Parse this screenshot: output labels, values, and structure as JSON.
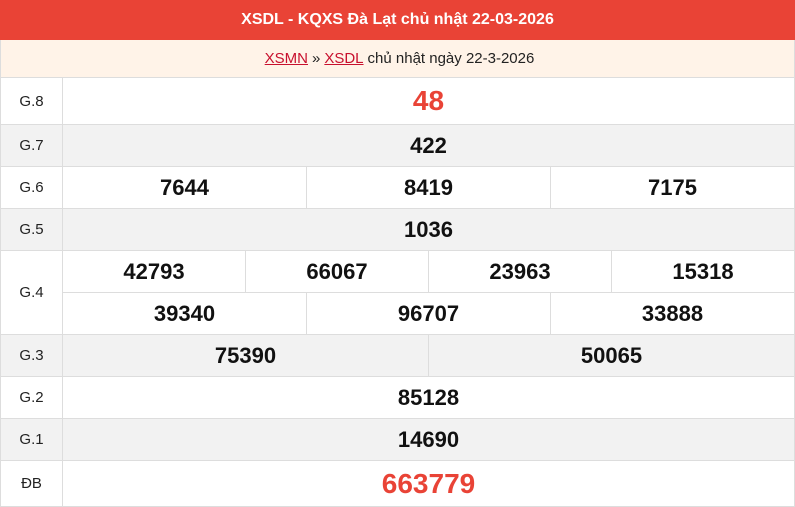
{
  "header": {
    "title": "XSDL - KQXS Đà Lạt chủ nhật 22-03-2026"
  },
  "breadcrumb": {
    "link1": "XSMN",
    "sep": "»",
    "link2": "XSDL",
    "text": "chủ nhật ngày 22-3-2026"
  },
  "prizes": {
    "g8": {
      "label": "G.8",
      "values": [
        "48"
      ]
    },
    "g7": {
      "label": "G.7",
      "values": [
        "422"
      ]
    },
    "g6": {
      "label": "G.6",
      "values": [
        "7644",
        "8419",
        "7175"
      ]
    },
    "g5": {
      "label": "G.5",
      "values": [
        "1036"
      ]
    },
    "g4": {
      "label": "G.4",
      "values": [
        "42793",
        "66067",
        "23963",
        "15318",
        "39340",
        "96707",
        "33888"
      ]
    },
    "g3": {
      "label": "G.3",
      "values": [
        "75390",
        "50065"
      ]
    },
    "g2": {
      "label": "G.2",
      "values": [
        "85128"
      ]
    },
    "g1": {
      "label": "G.1",
      "values": [
        "14690"
      ]
    },
    "db": {
      "label": "ĐB",
      "values": [
        "663779"
      ]
    }
  },
  "colors": {
    "accent": "#e94336",
    "subheader_bg": "#fff3e8"
  }
}
